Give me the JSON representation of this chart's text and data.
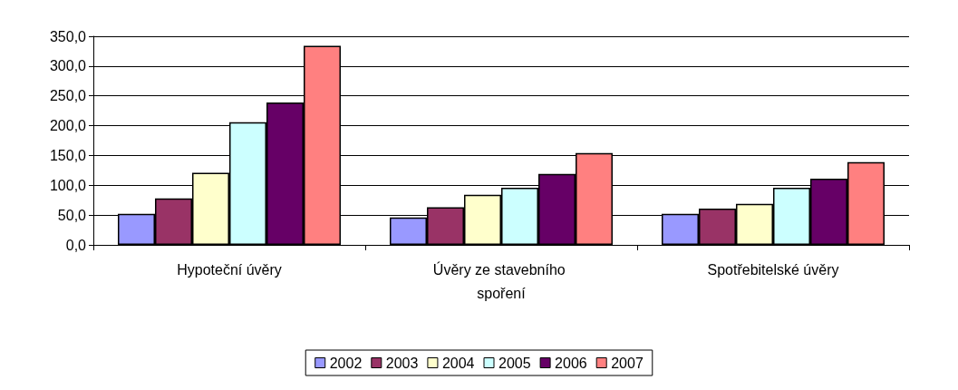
{
  "chart_data": {
    "type": "bar",
    "categories": [
      "Hypoteční úvěry",
      "Úvěry ze stavebního spoření",
      "Spotřebitelské úvěry"
    ],
    "series": [
      {
        "name": "2002",
        "color": "#9999ff",
        "values": [
          52,
          46,
          52
        ]
      },
      {
        "name": "2003",
        "color": "#993366",
        "values": [
          78,
          63,
          61
        ]
      },
      {
        "name": "2004",
        "color": "#ffffcc",
        "values": [
          121,
          84,
          69
        ]
      },
      {
        "name": "2005",
        "color": "#ccffff",
        "values": [
          206,
          96,
          96
        ]
      },
      {
        "name": "2006",
        "color": "#660066",
        "values": [
          239,
          119,
          111
        ]
      },
      {
        "name": "2007",
        "color": "#ff8080",
        "values": [
          334,
          154,
          139
        ]
      }
    ],
    "ylim": [
      0,
      350
    ],
    "yticks": [
      {
        "value": 0,
        "label": "0,0"
      },
      {
        "value": 50,
        "label": "50,0"
      },
      {
        "value": 100,
        "label": "100,0"
      },
      {
        "value": 150,
        "label": "150,0"
      },
      {
        "value": 200,
        "label": "200,0"
      },
      {
        "value": 250,
        "label": "250,0"
      },
      {
        "value": 300,
        "label": "300,0"
      },
      {
        "value": 350,
        "label": "350,0"
      }
    ],
    "grid": "y",
    "legend": "bottom"
  }
}
